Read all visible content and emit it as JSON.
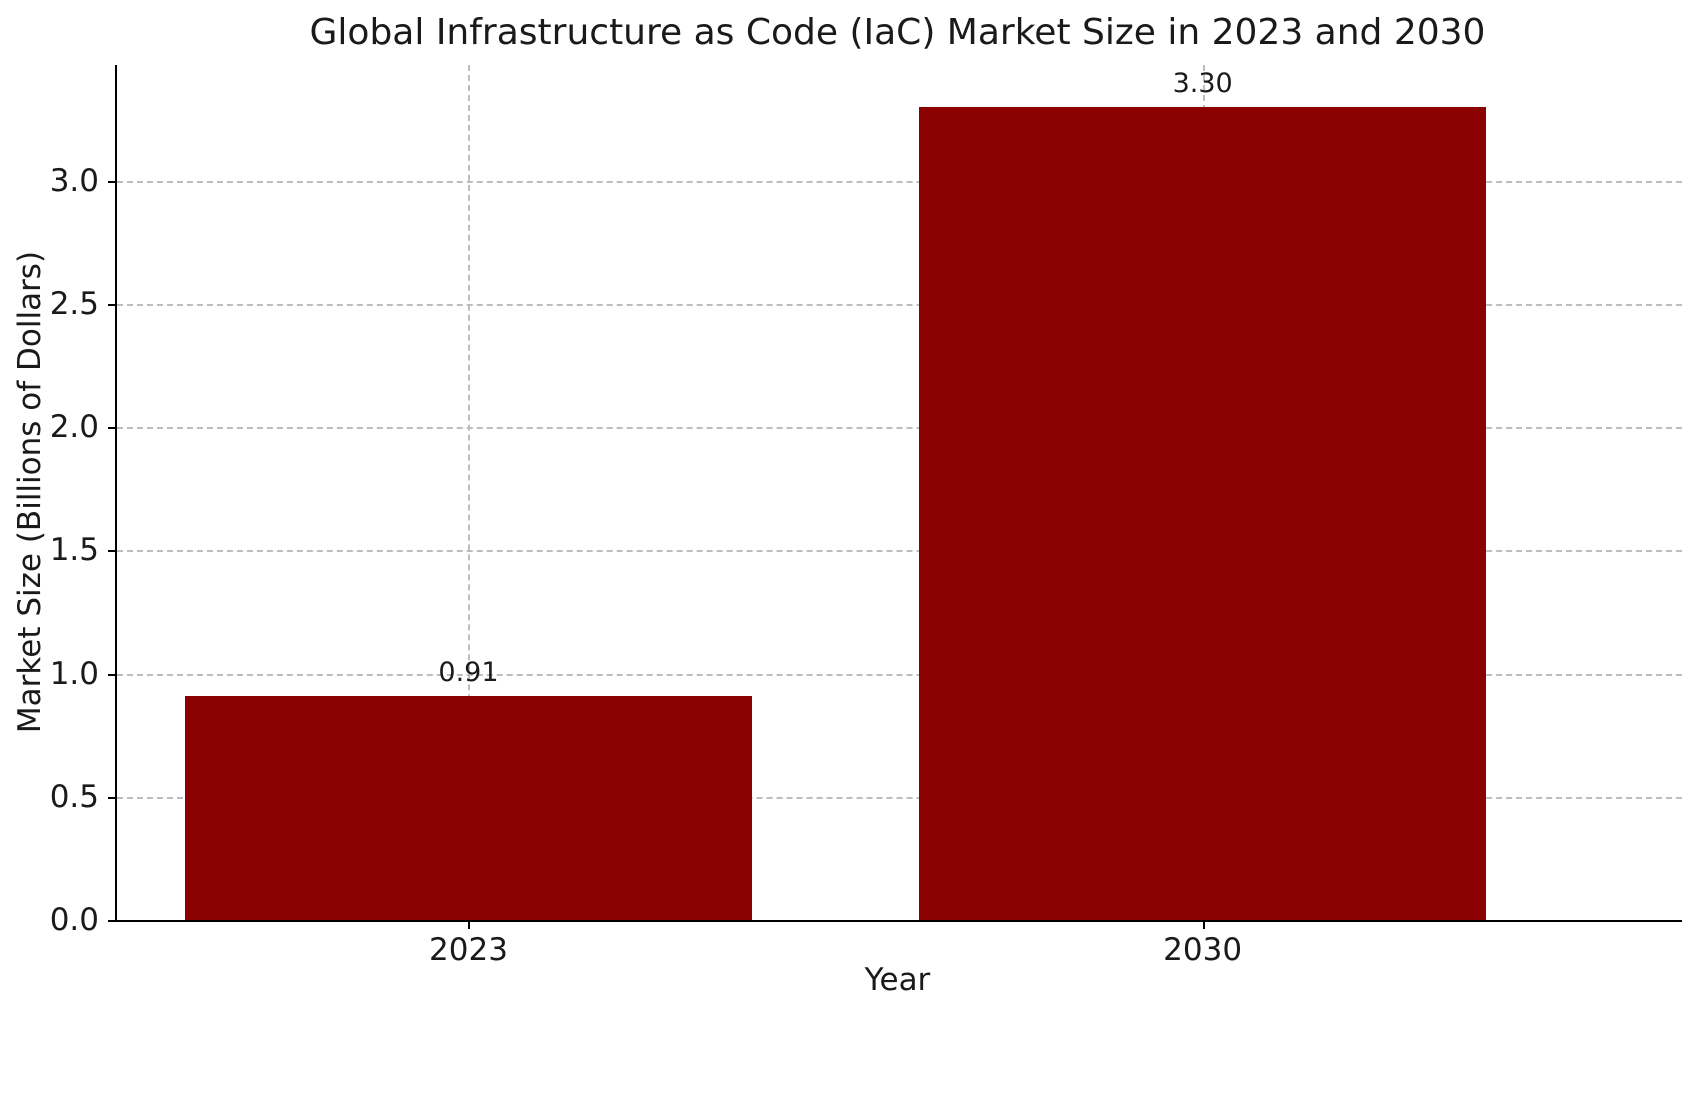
{
  "chart_data": {
    "type": "bar",
    "title": "Global Infrastructure as Code (IaC) Market Size in 2023 and 2030",
    "categories": [
      "2023",
      "2030"
    ],
    "values": [
      0.91,
      3.3
    ],
    "data_labels": [
      "0.91",
      "3.30"
    ],
    "xlabel": "Year",
    "ylabel": "Market Size (Billions of Dollars)",
    "ylim": [
      0,
      3.47
    ],
    "yticks": [
      "0.0",
      "0.5",
      "1.0",
      "1.5",
      "2.0",
      "2.5",
      "3.0"
    ],
    "bar_color": "#8B0000",
    "grid": true,
    "grid_style": "dashed",
    "grid_color": "#BDBDBD",
    "legend": "none",
    "background": "#FFFFFF"
  }
}
